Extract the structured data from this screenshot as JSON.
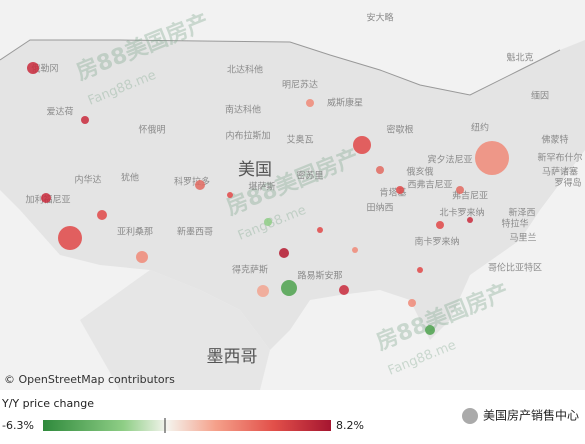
{
  "map": {
    "country_labels": [
      "美国",
      "墨西哥"
    ],
    "region_labels": [
      "安大略",
      "魁北克",
      "北达科他",
      "明尼苏达",
      "南达科他",
      "威斯康星",
      "爱达荷",
      "俄勒冈",
      "怀俄明",
      "艾奥瓦",
      "内布拉斯加",
      "内华达",
      "犹他",
      "科罗拉多",
      "堪萨斯",
      "密苏里",
      "纽约",
      "宾夕法尼亚",
      "西弗吉尼亚",
      "弗吉尼亚",
      "北卡罗来纳",
      "南卡罗来纳",
      "肯塔基",
      "田纳西",
      "新墨西哥",
      "亚利桑那",
      "加利福尼亚",
      "得克萨斯",
      "路易斯安那",
      "哥伦比亚特区",
      "缅因",
      "新泽西",
      "马里兰",
      "特拉华",
      "罗得岛",
      "密歇根",
      "俄亥俄",
      "佛蒙特",
      "新罕布什尔",
      "马萨诸塞"
    ]
  },
  "watermarks": [
    "房88美国房产",
    "Fang88.me"
  ],
  "attribution": "© OpenStreetMap contributors",
  "legend": {
    "title": "Y/Y price change",
    "min": "-6.3%",
    "max": "8.2%"
  },
  "footer": "美国房产销售中心"
}
